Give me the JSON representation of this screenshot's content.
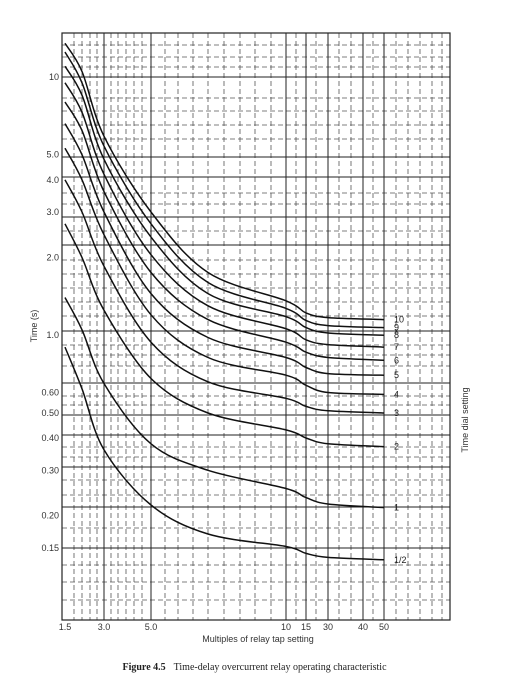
{
  "chart_data": {
    "type": "line",
    "title": "",
    "xlabel": "Multiples of relay tap setting",
    "ylabel": "Time (s)",
    "right_label": "Time dial setting",
    "x_tick_labels": [
      "1.5",
      "3.0",
      "5.0",
      "10",
      "15",
      "30",
      "40",
      "50"
    ],
    "y_ticks": [
      {
        "value": 10,
        "label": "10"
      },
      {
        "value": 5,
        "label": "5.0"
      },
      {
        "value": 4,
        "label": "4.0"
      },
      {
        "value": 3,
        "label": "3.0"
      },
      {
        "value": 2,
        "label": "2.0"
      },
      {
        "value": 1,
        "label": "1.0"
      },
      {
        "value": 0.6,
        "label": "0.60"
      },
      {
        "value": 0.5,
        "label": "0.50"
      },
      {
        "value": 0.4,
        "label": "0.40"
      },
      {
        "value": 0.3,
        "label": "0.30"
      },
      {
        "value": 0.2,
        "label": "0.20"
      },
      {
        "value": 0.15,
        "label": "0.15"
      }
    ],
    "y_scale": "log",
    "ylim": [
      0.105,
      14
    ],
    "grid": true,
    "series": [
      {
        "name": "10",
        "points": [
          [
            1.5,
            13.5
          ],
          [
            2,
            10.5
          ],
          [
            3,
            5.9
          ],
          [
            5,
            3.0
          ],
          [
            7,
            1.75
          ],
          [
            10,
            1.36
          ],
          [
            15,
            1.22
          ],
          [
            30,
            1.17
          ],
          [
            50,
            1.15
          ]
        ]
      },
      {
        "name": "9",
        "points": [
          [
            1.5,
            12.5
          ],
          [
            2,
            9.5
          ],
          [
            3,
            5.4
          ],
          [
            5,
            2.7
          ],
          [
            7,
            1.6
          ],
          [
            10,
            1.27
          ],
          [
            15,
            1.14
          ],
          [
            30,
            1.09
          ],
          [
            50,
            1.07
          ]
        ]
      },
      {
        "name": "8",
        "points": [
          [
            1.5,
            11.0
          ],
          [
            2,
            8.5
          ],
          [
            3,
            4.8
          ],
          [
            5,
            2.4
          ],
          [
            7,
            1.45
          ],
          [
            10,
            1.18
          ],
          [
            15,
            1.07
          ],
          [
            30,
            1.02
          ],
          [
            50,
            1.0
          ]
        ]
      },
      {
        "name": "7",
        "points": [
          [
            1.5,
            9.5
          ],
          [
            2,
            7.3
          ],
          [
            3,
            4.2
          ],
          [
            5,
            2.05
          ],
          [
            7,
            1.3
          ],
          [
            10,
            1.06
          ],
          [
            15,
            0.96
          ],
          [
            30,
            0.92
          ],
          [
            50,
            0.9
          ]
        ]
      },
      {
        "name": "6",
        "points": [
          [
            1.5,
            8.0
          ],
          [
            2,
            6.2
          ],
          [
            3,
            3.6
          ],
          [
            5,
            1.75
          ],
          [
            7,
            1.15
          ],
          [
            10,
            0.94
          ],
          [
            15,
            0.86
          ],
          [
            30,
            0.82
          ],
          [
            50,
            0.8
          ]
        ]
      },
      {
        "name": "5",
        "points": [
          [
            1.5,
            6.6
          ],
          [
            2,
            5.0
          ],
          [
            3,
            3.0
          ],
          [
            5,
            1.45
          ],
          [
            7,
            0.98
          ],
          [
            10,
            0.82
          ],
          [
            15,
            0.75
          ],
          [
            30,
            0.71
          ],
          [
            50,
            0.7
          ]
        ]
      },
      {
        "name": "4",
        "points": [
          [
            1.5,
            5.3
          ],
          [
            2,
            4.0
          ],
          [
            3,
            2.45
          ],
          [
            5,
            1.2
          ],
          [
            7,
            0.82
          ],
          [
            10,
            0.7
          ],
          [
            15,
            0.64
          ],
          [
            30,
            0.6
          ],
          [
            50,
            0.59
          ]
        ]
      },
      {
        "name": "3",
        "points": [
          [
            1.5,
            4.0
          ],
          [
            2,
            3.0
          ],
          [
            3,
            1.85
          ],
          [
            5,
            0.94
          ],
          [
            7,
            0.66
          ],
          [
            10,
            0.57
          ],
          [
            15,
            0.53
          ],
          [
            30,
            0.51
          ],
          [
            50,
            0.5
          ]
        ]
      },
      {
        "name": "2",
        "points": [
          [
            1.5,
            2.7
          ],
          [
            2,
            2.0
          ],
          [
            3,
            1.25
          ],
          [
            5,
            0.68
          ],
          [
            7,
            0.5
          ],
          [
            10,
            0.43
          ],
          [
            15,
            0.4
          ],
          [
            30,
            0.38
          ],
          [
            50,
            0.37
          ]
        ]
      },
      {
        "name": "1",
        "points": [
          [
            1.5,
            1.4
          ],
          [
            2,
            1.05
          ],
          [
            3,
            0.65
          ],
          [
            5,
            0.38
          ],
          [
            7,
            0.3
          ],
          [
            10,
            0.255
          ],
          [
            15,
            0.235
          ],
          [
            30,
            0.222
          ],
          [
            50,
            0.215
          ]
        ]
      },
      {
        "name": "1/2",
        "points": [
          [
            1.5,
            0.9
          ],
          [
            2,
            0.62
          ],
          [
            3,
            0.36
          ],
          [
            5,
            0.22
          ],
          [
            7,
            0.17
          ],
          [
            10,
            0.152
          ],
          [
            15,
            0.143
          ],
          [
            30,
            0.138
          ],
          [
            50,
            0.135
          ]
        ]
      }
    ]
  },
  "caption": {
    "figure": "Figure 4.5",
    "text": "Time-delay overcurrent relay operating characteristic"
  }
}
